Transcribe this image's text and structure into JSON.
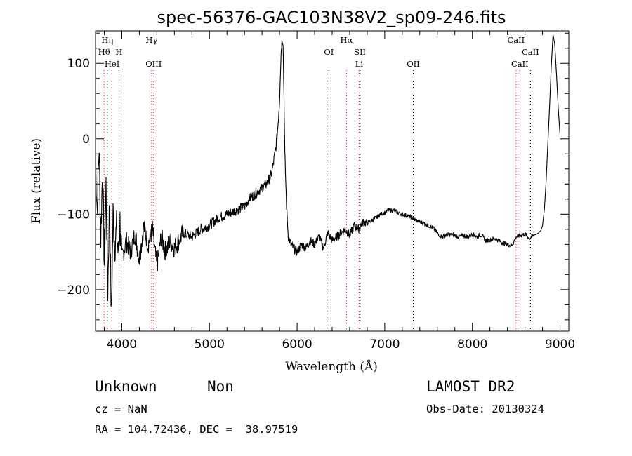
{
  "chart_data": {
    "type": "line",
    "title": "spec-56376-GAC103N38V2_sp09-246.fits",
    "xlabel": "Wavelength (Å)",
    "ylabel": "Flux (relative)",
    "xlim": [
      3700,
      9100
    ],
    "ylim": [
      -255,
      143
    ],
    "xticks": [
      4000,
      5000,
      6000,
      7000,
      8000,
      9000
    ],
    "yticks": [
      -200,
      -100,
      0,
      100
    ],
    "grid": false,
    "series": [
      {
        "color": "#000000",
        "x": [
          3700,
          3720,
          3740,
          3760,
          3780,
          3800,
          3820,
          3840,
          3860,
          3880,
          3900,
          3920,
          3940,
          3960,
          3980,
          4000,
          4050,
          4100,
          4150,
          4200,
          4250,
          4300,
          4350,
          4400,
          4450,
          4500,
          4550,
          4600,
          4700,
          4800,
          4900,
          5000,
          5100,
          5200,
          5300,
          5400,
          5450,
          5500,
          5550,
          5600,
          5650,
          5700,
          5720,
          5740,
          5760,
          5780,
          5800,
          5810,
          5820,
          5830,
          5840,
          5850,
          5860,
          5880,
          5900,
          5930,
          5960,
          6000,
          6050,
          6100,
          6150,
          6200,
          6250,
          6300,
          6350,
          6400,
          6450,
          6500,
          6550,
          6600,
          6650,
          6700,
          6750,
          6800,
          6850,
          6900,
          6950,
          7000,
          7050,
          7100,
          7150,
          7200,
          7250,
          7300,
          7350,
          7400,
          7450,
          7500,
          7550,
          7600,
          7650,
          7700,
          7750,
          7800,
          7850,
          7900,
          7950,
          8000,
          8050,
          8100,
          8150,
          8200,
          8250,
          8300,
          8350,
          8400,
          8450,
          8500,
          8550,
          8600,
          8650,
          8700,
          8740,
          8760,
          8780,
          8800,
          8820,
          8840,
          8860,
          8880,
          8900,
          8920,
          8940,
          8960,
          8980,
          9000
        ],
        "y": [
          -25,
          -95,
          -10,
          -130,
          -40,
          -165,
          -60,
          -200,
          -80,
          -240,
          -100,
          -140,
          -120,
          -155,
          -110,
          -160,
          -135,
          -150,
          -125,
          -160,
          -115,
          -140,
          -120,
          -170,
          -130,
          -150,
          -135,
          -145,
          -125,
          -130,
          -120,
          -115,
          -105,
          -100,
          -95,
          -90,
          -80,
          -75,
          -70,
          -65,
          -60,
          -50,
          -40,
          -25,
          -10,
          15,
          50,
          90,
          120,
          132,
          128,
          60,
          -20,
          -90,
          -130,
          -140,
          -145,
          -150,
          -140,
          -145,
          -135,
          -140,
          -130,
          -145,
          -125,
          -135,
          -130,
          -125,
          -120,
          -128,
          -115,
          -120,
          -110,
          -112,
          -108,
          -105,
          -100,
          -98,
          -95,
          -95,
          -98,
          -100,
          -102,
          -104,
          -108,
          -110,
          -112,
          -115,
          -118,
          -125,
          -130,
          -128,
          -127,
          -128,
          -130,
          -128,
          -130,
          -126,
          -130,
          -127,
          -135,
          -134,
          -132,
          -135,
          -138,
          -140,
          -142,
          -130,
          -128,
          -126,
          -132,
          -128,
          -126,
          -124,
          -122,
          -115,
          -95,
          -60,
          -10,
          40,
          95,
          138,
          125,
          85,
          40,
          5
        ]
      }
    ],
    "line_labels": [
      {
        "name": "Hη",
        "wave": 3835,
        "color": "#000000",
        "row": 0
      },
      {
        "name": "Hθ",
        "wave": 3798,
        "color": "#ff0000",
        "row": 1
      },
      {
        "name": "H",
        "wave": 3968,
        "color": "#000000",
        "row": 1
      },
      {
        "name": "HeI",
        "wave": 3889,
        "color": "#ff0000",
        "row": 2
      },
      {
        "name": "Hγ",
        "wave": 4340,
        "color": "#ff0000",
        "row": 0
      },
      {
        "name": "OIII",
        "wave": 4363,
        "color": "#ff0000",
        "row": 2
      },
      {
        "name": "OI",
        "wave": 6363,
        "color": "#000000",
        "row": 1
      },
      {
        "name": "Hα",
        "wave": 6563,
        "color": "#ff0000",
        "row": 0
      },
      {
        "name": "SII",
        "wave": 6717,
        "color": "#000000",
        "row": 1
      },
      {
        "name": "Li",
        "wave": 6708,
        "color": "#ff0000",
        "row": 2
      },
      {
        "name": "OII",
        "wave": 7325,
        "color": "#000000",
        "row": 2
      },
      {
        "name": "CaII",
        "wave": 8498,
        "color": "#ff0000",
        "row": 0
      },
      {
        "name": "CaII",
        "wave": 8662,
        "color": "#000000",
        "row": 1
      },
      {
        "name": "CaII",
        "wave": 8542,
        "color": "#ff0000",
        "row": 2
      }
    ]
  },
  "info": {
    "class": "Unknown",
    "subclass": "Non",
    "survey": "LAMOST DR2",
    "cz": "cz = NaN",
    "obs_date": "Obs-Date: 20130324",
    "radec": "RA = 104.72436, DEC =  38.97519"
  }
}
